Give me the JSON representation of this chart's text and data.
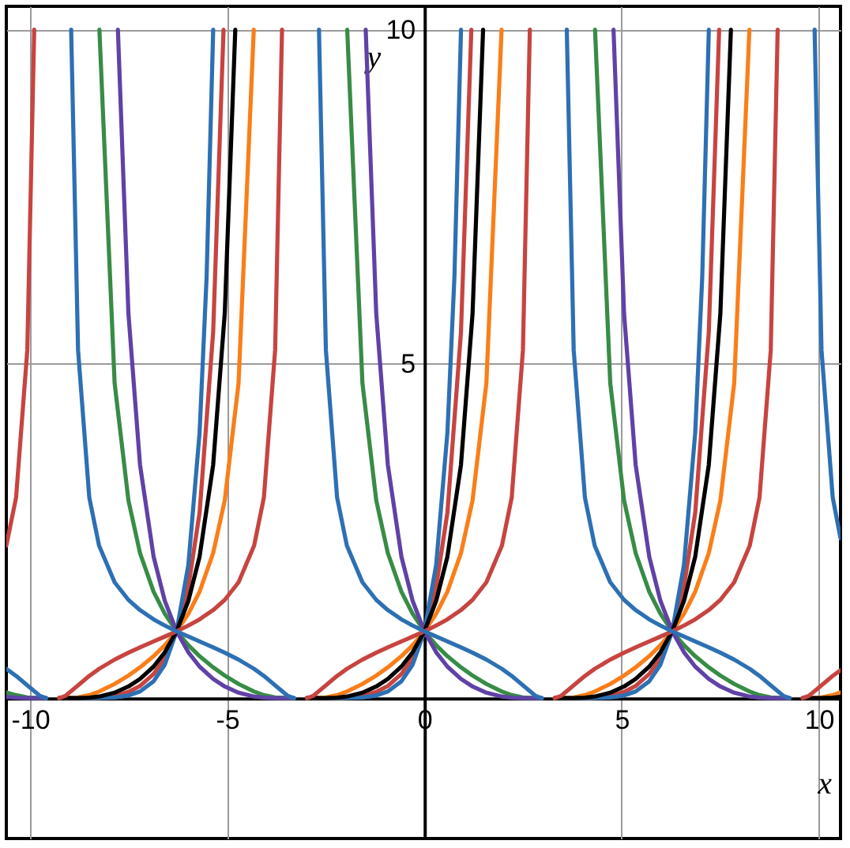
{
  "chart_data": {
    "type": "line",
    "xlabel": "x",
    "ylabel": "y",
    "xlim": [
      -10.6,
      10.55
    ],
    "ylim": [
      -2.1,
      10.35
    ],
    "xticks": [
      -10,
      -5,
      0,
      5,
      10
    ],
    "yticks": [
      5,
      10
    ],
    "grid": true,
    "series": [
      {
        "color": "#c74440",
        "x": [
          -9.258,
          -8.497,
          -8.249,
          -7.854,
          -7.504,
          -7.21,
          -6.866,
          -6.581,
          -6.283,
          -5.985,
          -5.7,
          -5.356,
          -5.093,
          null,
          -2.975,
          -2.214,
          -1.966,
          -1.571,
          -1.221,
          -0.927,
          -0.583,
          -0.298,
          0,
          0.298,
          0.583,
          0.927,
          1.19,
          null,
          3.308,
          4.069,
          4.317,
          4.712,
          5.062,
          5.356,
          5.7,
          5.985,
          6.283,
          6.581,
          6.866,
          7.21,
          7.473
        ],
        "values": [
          0,
          0.001,
          0.006,
          0.033,
          0.093,
          0.183,
          0.361,
          0.6,
          1,
          1.665,
          2.773,
          5.474,
          10,
          null,
          0,
          0.001,
          0.006,
          0.033,
          0.093,
          0.183,
          0.361,
          0.6,
          1,
          1.665,
          2.773,
          5.474,
          10,
          null,
          0,
          0.001,
          0.006,
          0.033,
          0.093,
          0.183,
          0.361,
          0.6,
          1,
          1.665,
          2.773,
          5.474,
          10
        ]
      },
      {
        "color": "#2d70b3",
        "x": [
          -9.258,
          -8.497,
          -7.854,
          -7.504,
          -7.21,
          -6.866,
          -6.581,
          -6.283,
          -5.985,
          -5.7,
          -5.522,
          -5.355,
          null,
          -2.975,
          -2.214,
          -1.571,
          -1.221,
          -0.927,
          -0.583,
          -0.298,
          0,
          0.298,
          0.583,
          0.761,
          0.928,
          null,
          3.308,
          4.069,
          4.712,
          5.062,
          5.356,
          5.7,
          5.985,
          6.283,
          6.581,
          6.866,
          7.044,
          7.211
        ],
        "values": [
          0,
          0.0001,
          0.01,
          0.04,
          0.1,
          0.252,
          0.502,
          1,
          1.993,
          3.97,
          6.3,
          10,
          null,
          0,
          0.0001,
          0.01,
          0.04,
          0.1,
          0.252,
          0.502,
          1,
          1.993,
          3.97,
          6.3,
          10,
          null,
          0,
          0.0001,
          0.01,
          0.04,
          0.1,
          0.252,
          0.502,
          1,
          1.993,
          3.97,
          6.3,
          10
        ]
      },
      {
        "color": "#388c46",
        "x": [
          -10.6,
          -10.352,
          -10.068,
          -9.755,
          -9.591,
          null,
          -8.24,
          -7.854,
          -7.504,
          -7.21,
          -6.866,
          -6.581,
          -6.283,
          -5.985,
          -5.7,
          -5.356,
          -5.062,
          -4.712,
          -4.317,
          -4.069,
          -3.785,
          -3.472,
          -3.308,
          null,
          -1.957,
          -1.571,
          -1.221,
          -0.927,
          -0.583,
          -0.298,
          0,
          0.298,
          0.583,
          0.927,
          1.221,
          1.571,
          1.966,
          2.214,
          2.498,
          2.811,
          2.975,
          null,
          4.326,
          4.712,
          5.062,
          5.356,
          5.7,
          5.985,
          6.283,
          6.581,
          6.866,
          7.21,
          7.504,
          7.854,
          8.249,
          8.497,
          8.781,
          9.094,
          9.258
        ],
        "values": [
          0.086,
          0.045,
          0.01,
          0.0001,
          0,
          null,
          10,
          4.711,
          2.958,
          2.17,
          1.592,
          1.262,
          1,
          0.793,
          0.628,
          0.461,
          0.338,
          0.212,
          0.098,
          0.045,
          0.01,
          0.0001,
          0,
          null,
          10,
          4.711,
          2.958,
          2.17,
          1.592,
          1.262,
          1,
          0.793,
          0.628,
          0.461,
          0.338,
          0.212,
          0.098,
          0.045,
          0.01,
          0.0001,
          0,
          null,
          10,
          4.711,
          2.958,
          2.17,
          1.592,
          1.262,
          1,
          0.793,
          0.628,
          0.461,
          0.338,
          0.212,
          0.098,
          0.045,
          0.01,
          0.0001,
          0
        ]
      },
      {
        "color": "#6042a6",
        "x": [
          -10.6,
          -10.352,
          -10.068,
          -9.591,
          null,
          -7.771,
          -7.504,
          -7.21,
          -6.866,
          -6.581,
          -6.283,
          -5.985,
          -5.7,
          -5.356,
          -5.062,
          -4.712,
          -4.317,
          -4.069,
          -3.785,
          -3.308,
          null,
          -1.488,
          -1.221,
          -0.927,
          -0.583,
          -0.298,
          0,
          0.298,
          0.583,
          0.927,
          1.221,
          1.571,
          1.966,
          2.214,
          2.498,
          2.975,
          null,
          4.795,
          5.062,
          5.356,
          5.7,
          5.985,
          6.283,
          6.581,
          6.866,
          7.21,
          7.504,
          7.854,
          8.249,
          8.497,
          8.781,
          9.258
        ],
        "values": [
          0.019,
          0.007,
          0.0006,
          0,
          null,
          10,
          5.755,
          3.49,
          2.117,
          1.455,
          1,
          0.687,
          0.472,
          0.287,
          0.174,
          0.082,
          0.024,
          0.007,
          0.0006,
          0,
          null,
          10,
          5.755,
          3.49,
          2.117,
          1.455,
          1,
          0.687,
          0.472,
          0.287,
          0.174,
          0.082,
          0.024,
          0.007,
          0.0006,
          0,
          null,
          10,
          5.755,
          3.49,
          2.117,
          1.455,
          1,
          0.687,
          0.472,
          0.287,
          0.174,
          0.082,
          0.024,
          0.007,
          0.0006,
          0
        ]
      },
      {
        "color": "#fa7e19",
        "x": [
          -9.258,
          -9.094,
          -8.781,
          -8.497,
          -8.249,
          -7.854,
          -7.504,
          -7.21,
          -6.866,
          -6.581,
          -6.283,
          -5.985,
          -5.7,
          -5.356,
          -5.062,
          -4.712,
          -4.326,
          null,
          -2.975,
          -2.811,
          -2.498,
          -2.214,
          -1.966,
          -1.571,
          -1.221,
          -0.927,
          -0.583,
          -0.298,
          0,
          0.298,
          0.583,
          0.927,
          1.221,
          1.571,
          1.957,
          null,
          3.308,
          3.472,
          3.785,
          4.069,
          4.317,
          4.712,
          5.062,
          5.356,
          5.7,
          5.985,
          6.283,
          6.581,
          6.866,
          7.21,
          7.504,
          7.854,
          8.24,
          null,
          9.591,
          9.755,
          10.068,
          10.352,
          10.55
        ],
        "values": [
          0,
          0.0001,
          0.01,
          0.045,
          0.098,
          0.212,
          0.338,
          0.461,
          0.628,
          0.793,
          1,
          1.262,
          1.592,
          2.17,
          2.958,
          4.711,
          10,
          null,
          0,
          0.0001,
          0.01,
          0.045,
          0.098,
          0.212,
          0.338,
          0.461,
          0.628,
          0.793,
          1,
          1.262,
          1.592,
          2.17,
          2.958,
          4.711,
          10,
          null,
          0,
          0.0001,
          0.01,
          0.045,
          0.098,
          0.212,
          0.338,
          0.461,
          0.628,
          0.793,
          1,
          1.262,
          1.592,
          2.17,
          2.958,
          4.711,
          10,
          null,
          0,
          0.0001,
          0.01,
          0.045,
          0.086
        ]
      },
      {
        "color": "#000000",
        "x": [
          -9.258,
          -8.781,
          -8.497,
          -8.249,
          -7.854,
          -7.504,
          -7.21,
          -6.866,
          -6.581,
          -6.283,
          -5.985,
          -5.7,
          -5.356,
          -5.062,
          -4.795,
          null,
          -2.975,
          -2.498,
          -2.214,
          -1.966,
          -1.571,
          -1.221,
          -0.927,
          -0.583,
          -0.298,
          0,
          0.298,
          0.583,
          0.927,
          1.221,
          1.488,
          null,
          3.308,
          3.785,
          4.069,
          4.317,
          4.712,
          5.062,
          5.356,
          5.7,
          5.985,
          6.283,
          6.581,
          6.866,
          7.21,
          7.504,
          7.771,
          null,
          9.591,
          10.068,
          10.352,
          10.55
        ],
        "values": [
          0,
          0.0006,
          0.007,
          0.024,
          0.082,
          0.174,
          0.287,
          0.472,
          0.687,
          1,
          1.455,
          2.117,
          3.49,
          5.755,
          10,
          null,
          0,
          0.0006,
          0.007,
          0.024,
          0.082,
          0.174,
          0.287,
          0.472,
          0.687,
          1,
          1.455,
          2.117,
          3.49,
          5.755,
          10,
          null,
          0,
          0.0006,
          0.007,
          0.024,
          0.082,
          0.174,
          0.287,
          0.472,
          0.687,
          1,
          1.455,
          2.117,
          3.49,
          5.755,
          10,
          null,
          0,
          0.0006,
          0.007,
          0.019
        ]
      },
      {
        "color": "#c74440",
        "x": [
          -10.6,
          -10.352,
          -10.068,
          -9.893,
          null,
          -9.258,
          -9.094,
          -8.781,
          -8.497,
          -8.249,
          -7.854,
          -7.504,
          -7.21,
          -6.866,
          -6.581,
          -6.283,
          -5.985,
          -5.7,
          -5.356,
          -5.062,
          -4.712,
          -4.317,
          -4.069,
          -3.785,
          -3.61,
          null,
          -2.975,
          -2.811,
          -2.498,
          -2.214,
          -1.966,
          -1.571,
          -1.221,
          -0.927,
          -0.583,
          -0.298,
          0,
          0.298,
          0.583,
          0.927,
          1.221,
          1.571,
          1.966,
          2.214,
          2.498,
          2.673,
          null,
          3.308,
          3.472,
          3.785,
          4.069,
          4.317,
          4.712,
          5.062,
          5.356,
          5.7,
          5.985,
          6.283,
          6.581,
          6.866,
          7.21,
          7.504,
          7.854,
          8.249,
          8.497,
          8.781,
          8.956,
          null,
          9.591,
          9.755,
          10.068,
          10.352,
          10.55
        ],
        "values": [
          2.282,
          3.004,
          5.207,
          10,
          null,
          0.0014,
          0.037,
          0.192,
          0.333,
          0.438,
          0.577,
          0.68,
          0.76,
          0.848,
          0.921,
          1,
          1.086,
          1.179,
          1.317,
          1.47,
          1.733,
          2.282,
          3.004,
          5.207,
          10,
          null,
          0.0014,
          0.037,
          0.192,
          0.333,
          0.438,
          0.577,
          0.68,
          0.76,
          0.848,
          0.921,
          1,
          1.086,
          1.179,
          1.317,
          1.47,
          1.733,
          2.282,
          3.004,
          5.207,
          10,
          null,
          0.0014,
          0.037,
          0.192,
          0.333,
          0.438,
          0.577,
          0.68,
          0.76,
          0.848,
          0.921,
          1,
          1.086,
          1.179,
          1.317,
          1.47,
          1.733,
          2.282,
          3.004,
          5.207,
          10,
          null,
          0.0014,
          0.037,
          0.192,
          0.333,
          0.419
        ]
      },
      {
        "color": "#2d70b3",
        "x": [
          -10.6,
          -10.352,
          -10.068,
          -9.755,
          -9.591,
          null,
          -8.956,
          -8.781,
          -8.497,
          -8.249,
          -7.854,
          -7.504,
          -7.21,
          -6.866,
          -6.581,
          -6.283,
          -5.985,
          -5.7,
          -5.356,
          -5.062,
          -4.712,
          -4.317,
          -4.069,
          -3.785,
          -3.472,
          -3.308,
          null,
          -2.673,
          -2.498,
          -2.214,
          -1.966,
          -1.571,
          -1.221,
          -0.927,
          -0.583,
          -0.298,
          0,
          0.298,
          0.583,
          0.927,
          1.221,
          1.571,
          1.966,
          2.214,
          2.498,
          2.811,
          2.975,
          null,
          3.61,
          3.785,
          4.069,
          4.317,
          4.712,
          5.062,
          5.356,
          5.7,
          5.985,
          6.283,
          6.581,
          6.866,
          7.21,
          7.504,
          7.854,
          8.249,
          8.497,
          8.781,
          9.094,
          9.258,
          null,
          9.893,
          10.068,
          10.352,
          10.55
        ],
        "values": [
          0.438,
          0.333,
          0.192,
          0.037,
          0.0014,
          null,
          10,
          5.207,
          3.004,
          2.282,
          1.733,
          1.47,
          1.317,
          1.179,
          1.086,
          1,
          0.921,
          0.848,
          0.76,
          0.68,
          0.577,
          0.438,
          0.333,
          0.192,
          0.037,
          0.0014,
          null,
          10,
          5.207,
          3.004,
          2.282,
          1.733,
          1.47,
          1.317,
          1.179,
          1.086,
          1,
          0.921,
          0.848,
          0.76,
          0.68,
          0.577,
          0.438,
          0.333,
          0.192,
          0.037,
          0.0014,
          null,
          10,
          5.207,
          3.004,
          2.282,
          1.733,
          1.47,
          1.317,
          1.179,
          1.086,
          1,
          0.921,
          0.848,
          0.76,
          0.68,
          0.577,
          0.438,
          0.333,
          0.192,
          0.037,
          0.0014,
          null,
          10,
          5.207,
          3.004,
          2.39
        ]
      }
    ]
  }
}
